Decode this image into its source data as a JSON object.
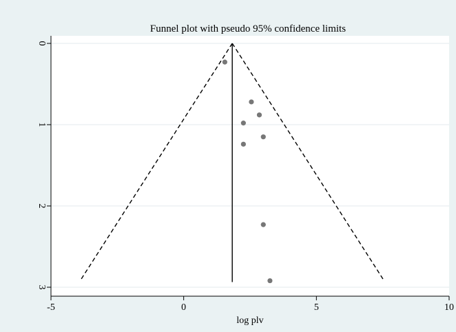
{
  "chart_data": {
    "type": "scatter",
    "title": "Funnel plot with pseudo 95% confidence limits",
    "xlabel": "log plv",
    "ylabel": "",
    "xlim": [
      -5,
      10
    ],
    "ylim": [
      0,
      3
    ],
    "y_reversed": true,
    "x_ticks": [
      -5,
      0,
      5,
      10
    ],
    "x_tick_labels": [
      "-5",
      "0",
      "5",
      "10"
    ],
    "y_ticks": [
      0,
      1,
      2,
      3
    ],
    "y_tick_labels": [
      "0",
      "1",
      "2",
      "3"
    ],
    "grid": "horizontal",
    "pooled_estimate": 1.83,
    "funnel_limits": {
      "y_max": 2.92,
      "left_x": -3.9,
      "right_x": 7.55,
      "style": "dashed"
    },
    "points": [
      {
        "x": 1.55,
        "y": 0.23
      },
      {
        "x": 2.55,
        "y": 0.72
      },
      {
        "x": 2.85,
        "y": 0.88
      },
      {
        "x": 2.25,
        "y": 0.98
      },
      {
        "x": 3.0,
        "y": 1.15
      },
      {
        "x": 2.25,
        "y": 1.24
      },
      {
        "x": 3.0,
        "y": 2.23
      },
      {
        "x": 3.25,
        "y": 2.92
      }
    ],
    "colors": {
      "background": "#eaf2f3",
      "plot_region": "#ffffff",
      "points": "#777777",
      "grid": "#e3eaec",
      "lines": "#000000"
    }
  }
}
